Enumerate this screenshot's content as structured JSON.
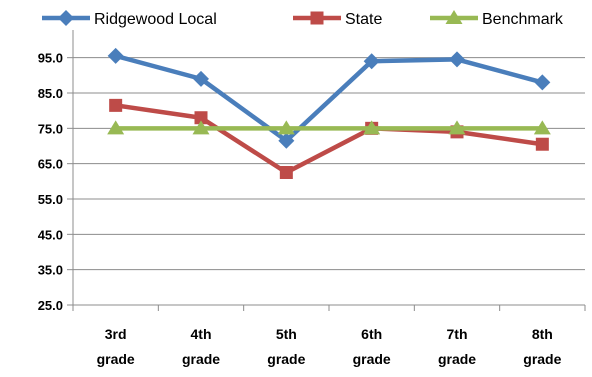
{
  "chart_data": {
    "type": "line",
    "categories": [
      "3rd grade",
      "4th grade",
      "5th grade",
      "6th grade",
      "7th grade",
      "8th grade"
    ],
    "category_lines": [
      [
        "3rd",
        "grade"
      ],
      [
        "4th",
        "grade"
      ],
      [
        "5th",
        "grade"
      ],
      [
        "6th",
        "grade"
      ],
      [
        "7th",
        "grade"
      ],
      [
        "8th",
        "grade"
      ]
    ],
    "series": [
      {
        "name": "Ridgewood Local",
        "color": "#4a7ebb",
        "marker": "diamond",
        "values": [
          95.5,
          89.0,
          71.5,
          94.0,
          94.5,
          88.0
        ]
      },
      {
        "name": "State",
        "color": "#be4b48",
        "marker": "square",
        "values": [
          81.5,
          78.0,
          62.5,
          75.0,
          74.0,
          70.5
        ]
      },
      {
        "name": "Benchmark",
        "color": "#98b954",
        "marker": "triangle",
        "values": [
          75.0,
          75.0,
          75.0,
          75.0,
          75.0,
          75.0
        ]
      }
    ],
    "y_ticks": [
      "25.0",
      "35.0",
      "45.0",
      "55.0",
      "65.0",
      "75.0",
      "85.0",
      "95.0"
    ],
    "ylim": [
      25,
      100
    ],
    "grid": true,
    "legend_position": "top"
  }
}
